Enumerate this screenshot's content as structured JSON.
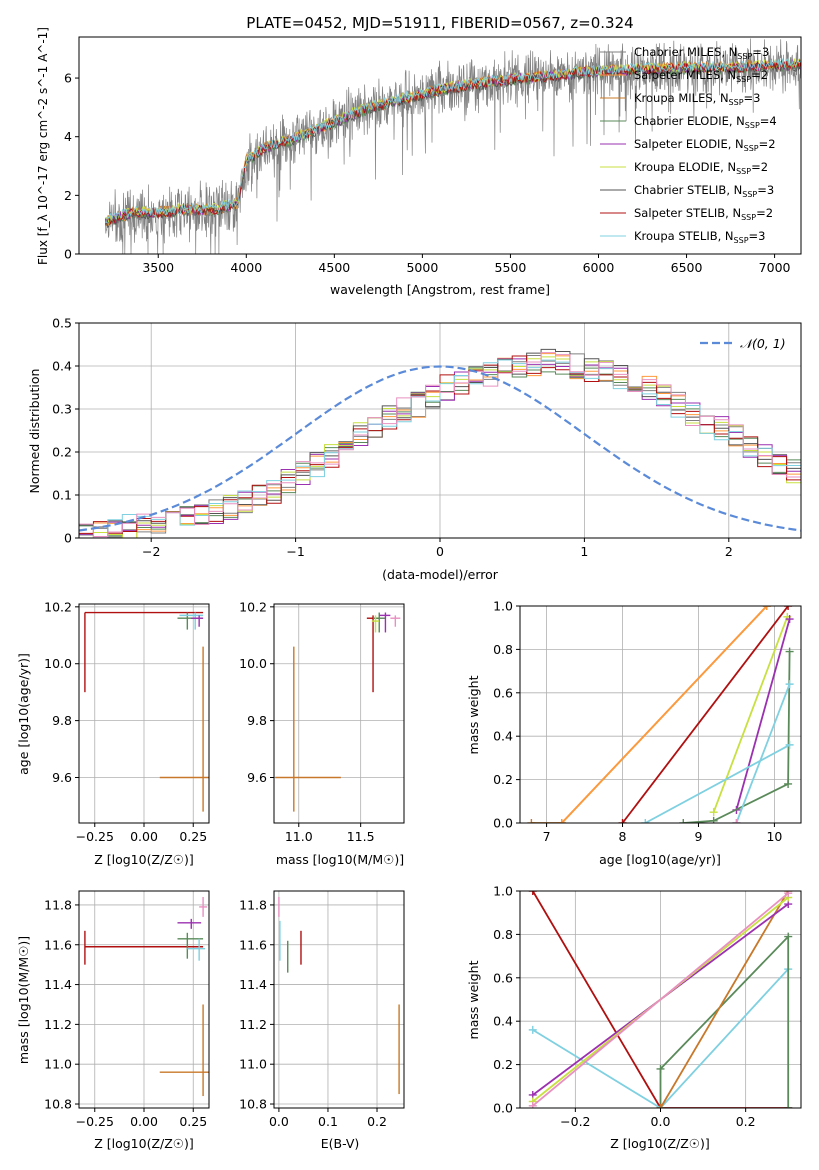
{
  "figure_title": "PLATE=0452, MJD=51911, FIBERID=0567, z=0.324",
  "legend_entries": [
    {
      "name": "Chabrier MILES, N_SSP=3",
      "label": "Chabrier MILES, N",
      "ssp": "3",
      "color": "#808080"
    },
    {
      "name": "Salpeter MILES, N_SSP=2",
      "label": "Salpeter MILES, N",
      "ssp": "2",
      "color": "#ff9a3c"
    },
    {
      "name": "Kroupa MILES, N_SSP=3",
      "label": "Kroupa MILES, N",
      "ssp": "3",
      "color": "#c8782a"
    },
    {
      "name": "Chabrier ELODIE, N_SSP=4",
      "label": "Chabrier ELODIE, N",
      "ssp": "4",
      "color": "#5a8a5a"
    },
    {
      "name": "Salpeter ELODIE, N_SSP=2",
      "label": "Salpeter ELODIE, N",
      "ssp": "2",
      "color": "#9b30b0"
    },
    {
      "name": "Kroupa ELODIE, N_SSP=2",
      "label": "Kroupa ELODIE, N",
      "ssp": "2",
      "color": "#c8e040"
    },
    {
      "name": "Chabrier STELIB, N_SSP=3",
      "label": "Chabrier STELIB, N",
      "ssp": "3",
      "color": "#555555"
    },
    {
      "name": "Salpeter STELIB, N_SSP=2",
      "label": "Salpeter STELIB, N",
      "ssp": "2",
      "color": "#b01010"
    },
    {
      "name": "Kroupa STELIB, N_SSP=3",
      "label": "Kroupa STELIB, N",
      "ssp": "3",
      "color": "#7fd0e0"
    }
  ],
  "chart_data": [
    {
      "id": "spectrum",
      "type": "line",
      "title": "PLATE=0452, MJD=51911, FIBERID=0567, z=0.324",
      "xlabel": "wavelength [Angstrom, rest frame]",
      "ylabel": "Flux [f_λ 10^-17 erg cm^-2 s^-1 A^-1]",
      "xlim": [
        3050,
        7150
      ],
      "ylim": [
        0,
        7.4
      ],
      "xticks": [
        3500,
        4000,
        4500,
        5000,
        5500,
        6000,
        6500,
        7000
      ],
      "yticks": [
        0,
        2,
        4,
        6
      ],
      "continuum_model": {
        "x": [
          3200,
          3350,
          3500,
          3650,
          3800,
          3950,
          4000,
          4100,
          4300,
          4500,
          4700,
          4900,
          5100,
          5300,
          5500,
          5700,
          5900,
          6100,
          6300,
          6500,
          6700,
          6900,
          7100
        ],
        "y": [
          1.1,
          1.4,
          1.4,
          1.5,
          1.5,
          1.7,
          3.2,
          3.6,
          4.0,
          4.5,
          5.0,
          5.3,
          5.6,
          5.8,
          5.95,
          6.05,
          6.2,
          6.25,
          6.3,
          6.35,
          6.35,
          6.4,
          6.45
        ]
      },
      "data_color": "#808080"
    },
    {
      "id": "residuals",
      "type": "bar",
      "xlabel": "(data-model)/error",
      "ylabel": "Normed distribution",
      "xlim": [
        -2.5,
        2.5
      ],
      "ylim": [
        0,
        0.5
      ],
      "xticks": [
        -2,
        -1,
        0,
        1,
        2
      ],
      "yticks": [
        0.0,
        0.1,
        0.2,
        0.3,
        0.4,
        0.5
      ],
      "legend": "𝒩(0, 1)",
      "normal_curve": {
        "mu": 0,
        "sigma": 1,
        "color": "#5b8bd8"
      },
      "bin_width": 0.1,
      "bins_start": -2.5,
      "histogram_mean": [
        0.01,
        0.015,
        0.02,
        0.025,
        0.035,
        0.04,
        0.045,
        0.05,
        0.055,
        0.06,
        0.07,
        0.08,
        0.095,
        0.11,
        0.13,
        0.15,
        0.17,
        0.19,
        0.21,
        0.24,
        0.26,
        0.28,
        0.3,
        0.31,
        0.33,
        0.35,
        0.36,
        0.37,
        0.38,
        0.39,
        0.4,
        0.405,
        0.41,
        0.405,
        0.4,
        0.39,
        0.385,
        0.375,
        0.36,
        0.35,
        0.33,
        0.31,
        0.29,
        0.27,
        0.255,
        0.235,
        0.215,
        0.195,
        0.175,
        0.155,
        0.14,
        0.12,
        0.105,
        0.09,
        0.075,
        0.065,
        0.055,
        0.045,
        0.04,
        0.035
      ],
      "series_colors": [
        "#808080",
        "#ff9a3c",
        "#5a8a5a",
        "#9b30b0",
        "#c8e040",
        "#555555",
        "#b01010",
        "#7fd0e0",
        "#e890c0"
      ]
    },
    {
      "id": "age_vs_Z",
      "type": "scatter",
      "xlabel": "Z [log10(Z/Z☉)]",
      "ylabel": "age [log10(age/yr)]",
      "xlim": [
        -0.33,
        0.33
      ],
      "ylim": [
        9.44,
        10.21
      ],
      "xticks": [
        "-0.25",
        "0.00",
        "0.25"
      ],
      "yticks": [
        "9.6",
        "9.8",
        "10.0",
        "10.2"
      ],
      "points": [
        {
          "x": 0.3,
          "y": 9.6,
          "xerr": [
            0.22,
            0.03
          ],
          "yerr": [
            0.12,
            0.46
          ],
          "color": "#c8782a"
        },
        {
          "x": -0.3,
          "y": 10.18,
          "xerr": [
            0.0,
            0.6
          ],
          "yerr": [
            0.28,
            0.0
          ],
          "color": "#b01010"
        },
        {
          "x": 0.22,
          "y": 10.16,
          "xerr": [
            0.05,
            0.08
          ],
          "yerr": [
            0.04,
            0.02
          ],
          "color": "#5a8a5a"
        },
        {
          "x": 0.26,
          "y": 10.17,
          "xerr": [
            0.08,
            0.04
          ],
          "yerr": [
            0.05,
            0.01
          ],
          "color": "#7fd0e0"
        },
        {
          "x": 0.28,
          "y": 10.16,
          "xerr": [
            0.04,
            0.02
          ],
          "yerr": [
            0.03,
            0.01
          ],
          "color": "#9b30b0"
        }
      ]
    },
    {
      "id": "age_vs_mass",
      "type": "scatter",
      "xlabel": "mass [log10(M/M☉)]",
      "ylabel": "",
      "xlim": [
        10.8,
        11.85
      ],
      "ylim": [
        9.44,
        10.21
      ],
      "xticks": [
        "11.0",
        "11.5"
      ],
      "yticks": [
        "9.6",
        "9.8",
        "10.0",
        "10.2"
      ],
      "points": [
        {
          "x": 10.96,
          "y": 9.6,
          "xerr": [
            0.15,
            0.38
          ],
          "yerr": [
            0.12,
            0.46
          ],
          "color": "#c8782a"
        },
        {
          "x": 11.6,
          "y": 10.16,
          "xerr": [
            0.05,
            0.05
          ],
          "yerr": [
            0.26,
            0.01
          ],
          "color": "#b01010"
        },
        {
          "x": 11.65,
          "y": 10.16,
          "xerr": [
            0.05,
            0.05
          ],
          "yerr": [
            0.05,
            0.02
          ],
          "color": "#5a8a5a"
        },
        {
          "x": 11.7,
          "y": 10.17,
          "xerr": [
            0.05,
            0.04
          ],
          "yerr": [
            0.06,
            0.01
          ],
          "color": "#9b30b0"
        },
        {
          "x": 11.78,
          "y": 10.16,
          "xerr": [
            0.04,
            0.04
          ],
          "yerr": [
            0.03,
            0.01
          ],
          "color": "#e890c0"
        },
        {
          "x": 11.62,
          "y": 10.15,
          "xerr": [
            0.03,
            0.03
          ],
          "yerr": [
            0.04,
            0.02
          ],
          "color": "#c8e040"
        }
      ]
    },
    {
      "id": "mass_weight_vs_age",
      "type": "line",
      "xlabel": "age [log10(age/yr)]",
      "ylabel": "mass weight",
      "xlim": [
        6.65,
        10.35
      ],
      "ylim": [
        0,
        1.0
      ],
      "xticks": [
        "7",
        "8",
        "9",
        "10"
      ],
      "yticks": [
        "0.0",
        "0.2",
        "0.4",
        "0.6",
        "0.8",
        "1.0"
      ],
      "series": [
        {
          "color": "#c8782a",
          "x": [
            6.8,
            7.2,
            9.9
          ],
          "y": [
            0.0,
            0.0,
            1.0
          ]
        },
        {
          "color": "#ff9a3c",
          "x": [
            7.2,
            9.9
          ],
          "y": [
            0.0,
            1.0
          ]
        },
        {
          "color": "#b01010",
          "x": [
            8.0,
            10.18
          ],
          "y": [
            0.0,
            1.0
          ]
        },
        {
          "color": "#c8e040",
          "x": [
            9.2,
            10.17
          ],
          "y": [
            0.05,
            0.95
          ]
        },
        {
          "color": "#9b30b0",
          "x": [
            9.5,
            10.2
          ],
          "y": [
            0.06,
            0.94
          ]
        },
        {
          "color": "#5a8a5a",
          "x": [
            8.8,
            9.2,
            10.18,
            10.2
          ],
          "y": [
            0.0,
            0.01,
            0.18,
            0.79
          ]
        },
        {
          "color": "#7fd0e0",
          "x": [
            8.3,
            10.2
          ],
          "y": [
            0.0,
            0.36
          ]
        },
        {
          "color": "#7fd0e0",
          "x": [
            9.5,
            10.2
          ],
          "y": [
            0.0,
            0.64
          ]
        },
        {
          "color": "#e890c0",
          "x": [
            9.5
          ],
          "y": [
            0.0
          ]
        }
      ]
    },
    {
      "id": "mass_vs_Z",
      "type": "scatter",
      "xlabel": "Z [log10(Z/Z☉)]",
      "ylabel": "mass [log10(M/M☉)]",
      "xlim": [
        -0.33,
        0.33
      ],
      "ylim": [
        10.78,
        11.87
      ],
      "xticks": [
        "-0.25",
        "0.00",
        "0.25"
      ],
      "yticks": [
        "10.8",
        "11.0",
        "11.2",
        "11.4",
        "11.6",
        "11.8"
      ],
      "points": [
        {
          "x": 0.3,
          "y": 10.96,
          "xerr": [
            0.22,
            0.03
          ],
          "yerr": [
            0.12,
            0.34
          ],
          "color": "#c8782a"
        },
        {
          "x": -0.3,
          "y": 11.59,
          "xerr": [
            0.0,
            0.6
          ],
          "yerr": [
            0.09,
            0.08
          ],
          "color": "#b01010"
        },
        {
          "x": 0.22,
          "y": 11.63,
          "xerr": [
            0.05,
            0.08
          ],
          "yerr": [
            0.1,
            0.03
          ],
          "color": "#5a8a5a"
        },
        {
          "x": 0.24,
          "y": 11.71,
          "xerr": [
            0.07,
            0.05
          ],
          "yerr": [
            0.03,
            0.02
          ],
          "color": "#9b30b0"
        },
        {
          "x": 0.28,
          "y": 11.58,
          "xerr": [
            0.06,
            0.03
          ],
          "yerr": [
            0.06,
            0.05
          ],
          "color": "#7fd0e0"
        },
        {
          "x": 0.3,
          "y": 11.79,
          "xerr": [
            0.02,
            0.02
          ],
          "yerr": [
            0.05,
            0.05
          ],
          "color": "#e890c0"
        }
      ]
    },
    {
      "id": "mass_vs_EBV",
      "type": "scatter",
      "xlabel": "E(B-V)",
      "ylabel": "",
      "xlim": [
        -0.01,
        0.255
      ],
      "ylim": [
        10.78,
        11.87
      ],
      "xticks": [
        "0.0",
        "0.1",
        "0.2"
      ],
      "yticks": [
        "10.8",
        "11.0",
        "11.2",
        "11.4",
        "11.6",
        "11.8"
      ],
      "points": [
        {
          "x": 0.245,
          "y": 11.07,
          "xerr": [
            0.0,
            0.0
          ],
          "yerr": [
            0.22,
            0.23
          ],
          "color": "#c8782a"
        },
        {
          "x": 0.045,
          "y": 11.58,
          "xerr": [
            0.0,
            0.0
          ],
          "yerr": [
            0.08,
            0.09
          ],
          "color": "#b01010"
        },
        {
          "x": 0.018,
          "y": 11.54,
          "xerr": [
            0.0,
            0.0
          ],
          "yerr": [
            0.08,
            0.08
          ],
          "color": "#5a8a5a"
        },
        {
          "x": 0.002,
          "y": 11.62,
          "xerr": [
            0.0,
            0.0
          ],
          "yerr": [
            0.1,
            0.1
          ],
          "color": "#7fd0e0"
        },
        {
          "x": 0.0,
          "y": 11.79,
          "xerr": [
            0.0,
            0.0
          ],
          "yerr": [
            0.05,
            0.05
          ],
          "color": "#e890c0"
        }
      ]
    },
    {
      "id": "mass_weight_vs_Z",
      "type": "line",
      "xlabel": "Z [log10(Z/Z☉)]",
      "ylabel": "mass weight",
      "xlim": [
        -0.33,
        0.33
      ],
      "ylim": [
        0,
        1.0
      ],
      "xticks": [
        "-0.2",
        "0.0",
        "0.2"
      ],
      "yticks": [
        "0.0",
        "0.2",
        "0.4",
        "0.6",
        "0.8",
        "1.0"
      ],
      "series": [
        {
          "color": "#b01010",
          "x": [
            -0.3,
            0.0,
            0.3
          ],
          "y": [
            1.0,
            0.0,
            0.0
          ]
        },
        {
          "color": "#7fd0e0",
          "x": [
            -0.3,
            0.0,
            0.3
          ],
          "y": [
            0.36,
            0.0,
            0.64
          ]
        },
        {
          "color": "#5a8a5a",
          "x": [
            0.0,
            0.0,
            0.3,
            0.3
          ],
          "y": [
            0.0,
            0.18,
            0.79,
            0.0
          ]
        },
        {
          "color": "#c8782a",
          "x": [
            0.0,
            0.3
          ],
          "y": [
            0.0,
            1.0
          ]
        },
        {
          "color": "#9b30b0",
          "x": [
            -0.3,
            0.3
          ],
          "y": [
            0.06,
            0.94
          ]
        },
        {
          "color": "#c8e040",
          "x": [
            -0.3,
            0.3
          ],
          "y": [
            0.03,
            0.97
          ]
        },
        {
          "color": "#e890c0",
          "x": [
            -0.3,
            0.3
          ],
          "y": [
            0.01,
            0.99
          ]
        }
      ]
    }
  ]
}
